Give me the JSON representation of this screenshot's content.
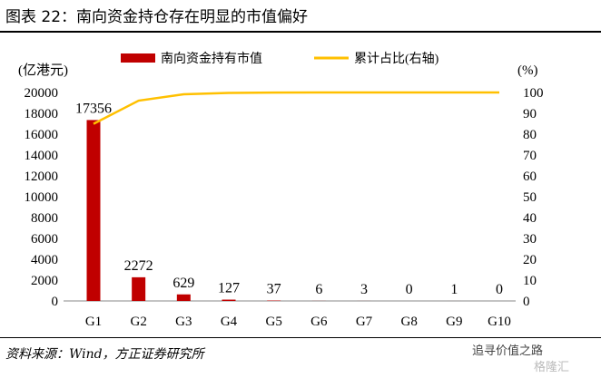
{
  "title": "图表 22：南向资金持仓存在明显的市值偏好",
  "source": "资料来源：Wind，方正证券研究所",
  "watermark": {
    "text": "追寻价值之路",
    "brand": "格隆汇"
  },
  "chart_data": {
    "type": "bar+line",
    "categories": [
      "G1",
      "G2",
      "G3",
      "G4",
      "G5",
      "G6",
      "G7",
      "G8",
      "G9",
      "G10"
    ],
    "series": [
      {
        "name": "南向资金持有市值",
        "type": "bar",
        "axis": "left",
        "color": "#C00000",
        "values": [
          17356,
          2272,
          629,
          127,
          37,
          6,
          3,
          0,
          1,
          0
        ]
      },
      {
        "name": "累计占比(右轴)",
        "type": "line",
        "axis": "right",
        "color": "#FFC000",
        "values": [
          84.95,
          96.07,
          99.15,
          99.77,
          99.95,
          99.98,
          99.995,
          99.995,
          100,
          100
        ]
      }
    ],
    "left_axis": {
      "label": "(亿港元)",
      "ylim": [
        0,
        20000
      ],
      "ticks": [
        0,
        2000,
        4000,
        6000,
        8000,
        10000,
        12000,
        14000,
        16000,
        18000,
        20000
      ]
    },
    "right_axis": {
      "label": "(%)",
      "ylim": [
        0,
        100
      ],
      "ticks": [
        0,
        10,
        20,
        30,
        40,
        50,
        60,
        70,
        80,
        90,
        100
      ]
    },
    "legend_position": "top"
  }
}
